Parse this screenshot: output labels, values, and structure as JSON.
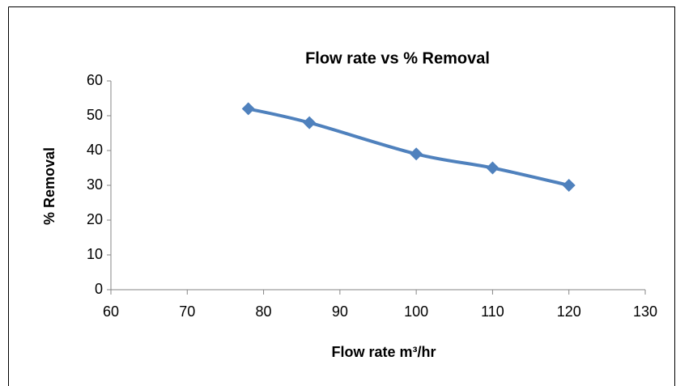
{
  "chart_data": {
    "type": "line",
    "title": "Flow rate vs % Removal",
    "xlabel": "Flow rate m³/hr",
    "ylabel": "% Removal",
    "x": [
      78,
      86,
      100,
      110,
      120
    ],
    "series": [
      {
        "name": "% Removal",
        "color": "#4f81bd",
        "values": [
          52,
          48,
          39,
          35,
          30
        ]
      }
    ],
    "xlim": [
      60,
      130
    ],
    "xticks": [
      60,
      70,
      80,
      90,
      100,
      110,
      120,
      130
    ],
    "ylim": [
      0,
      60
    ],
    "yticks": [
      0,
      10,
      20,
      30,
      40,
      50,
      60
    ],
    "grid": false,
    "legend": false
  }
}
